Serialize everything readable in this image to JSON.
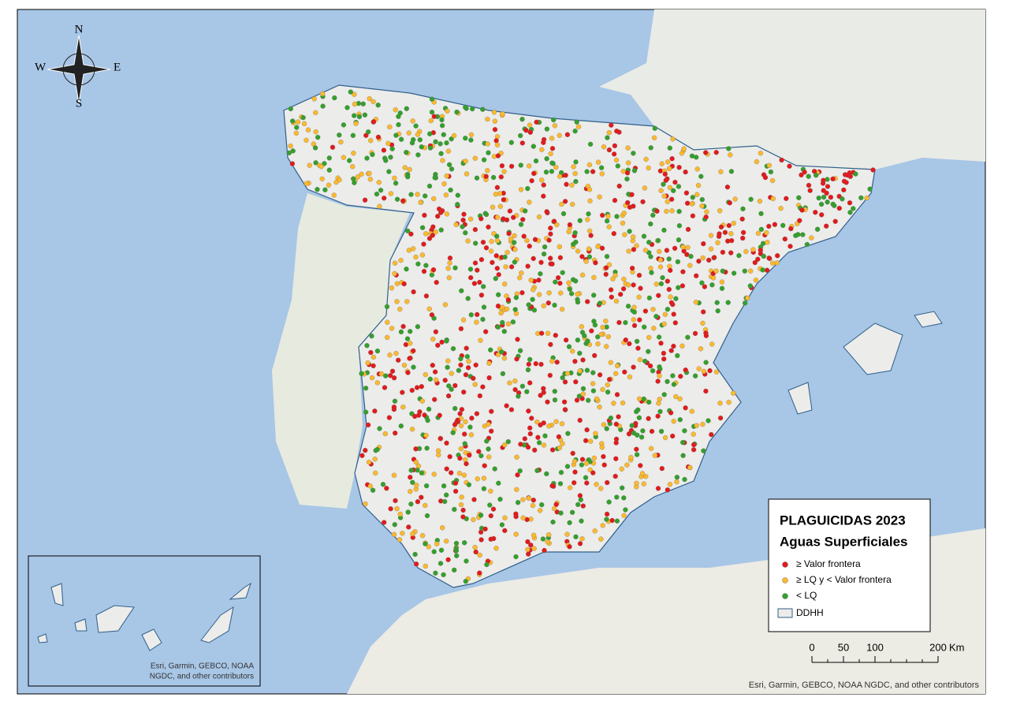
{
  "compass": {
    "north": "N",
    "south": "S",
    "east": "E",
    "west": "W"
  },
  "legend": {
    "title": "PLAGUICIDAS 2023",
    "subtitle": "Aguas Superficiales",
    "items": [
      {
        "label": "≥ Valor frontera",
        "color": "#e31a1c"
      },
      {
        "label": "≥ LQ y < Valor frontera",
        "color": "#fdb92e"
      },
      {
        "label": "< LQ",
        "color": "#33a02c"
      }
    ],
    "boundary": "DDHH"
  },
  "scale_bar": {
    "ticks": [
      0,
      50,
      100,
      200
    ],
    "unit": "Km"
  },
  "inset_attribution": [
    "Esri, Garmin, GEBCO, NOAA",
    "NGDC, and other contributors"
  ],
  "attribution": "Esri, Garmin, GEBCO, NOAA NGDC, and other contributors"
}
